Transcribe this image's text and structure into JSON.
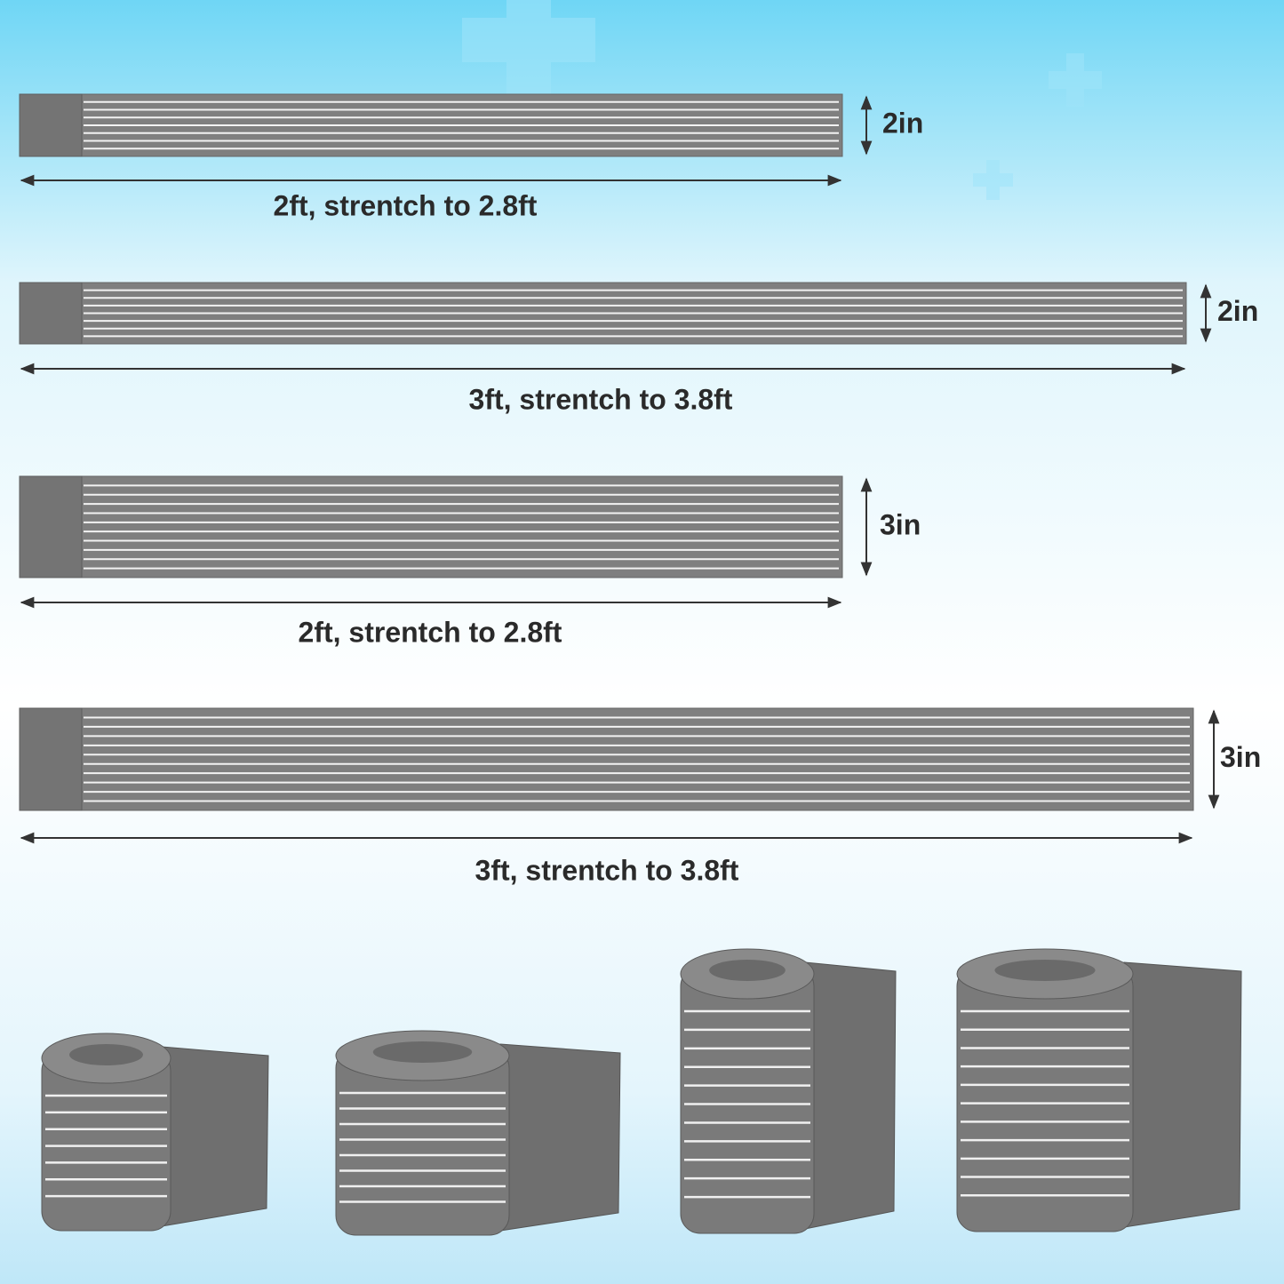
{
  "straps": [
    {
      "width": "2in",
      "length": "2ft, strentch to 2.8ft"
    },
    {
      "width": "2in",
      "length": "3ft, strentch to 3.8ft"
    },
    {
      "width": "3in",
      "length": "2ft, strentch to 2.8ft"
    },
    {
      "width": "3in",
      "length": "3ft, strentch to 3.8ft"
    }
  ]
}
